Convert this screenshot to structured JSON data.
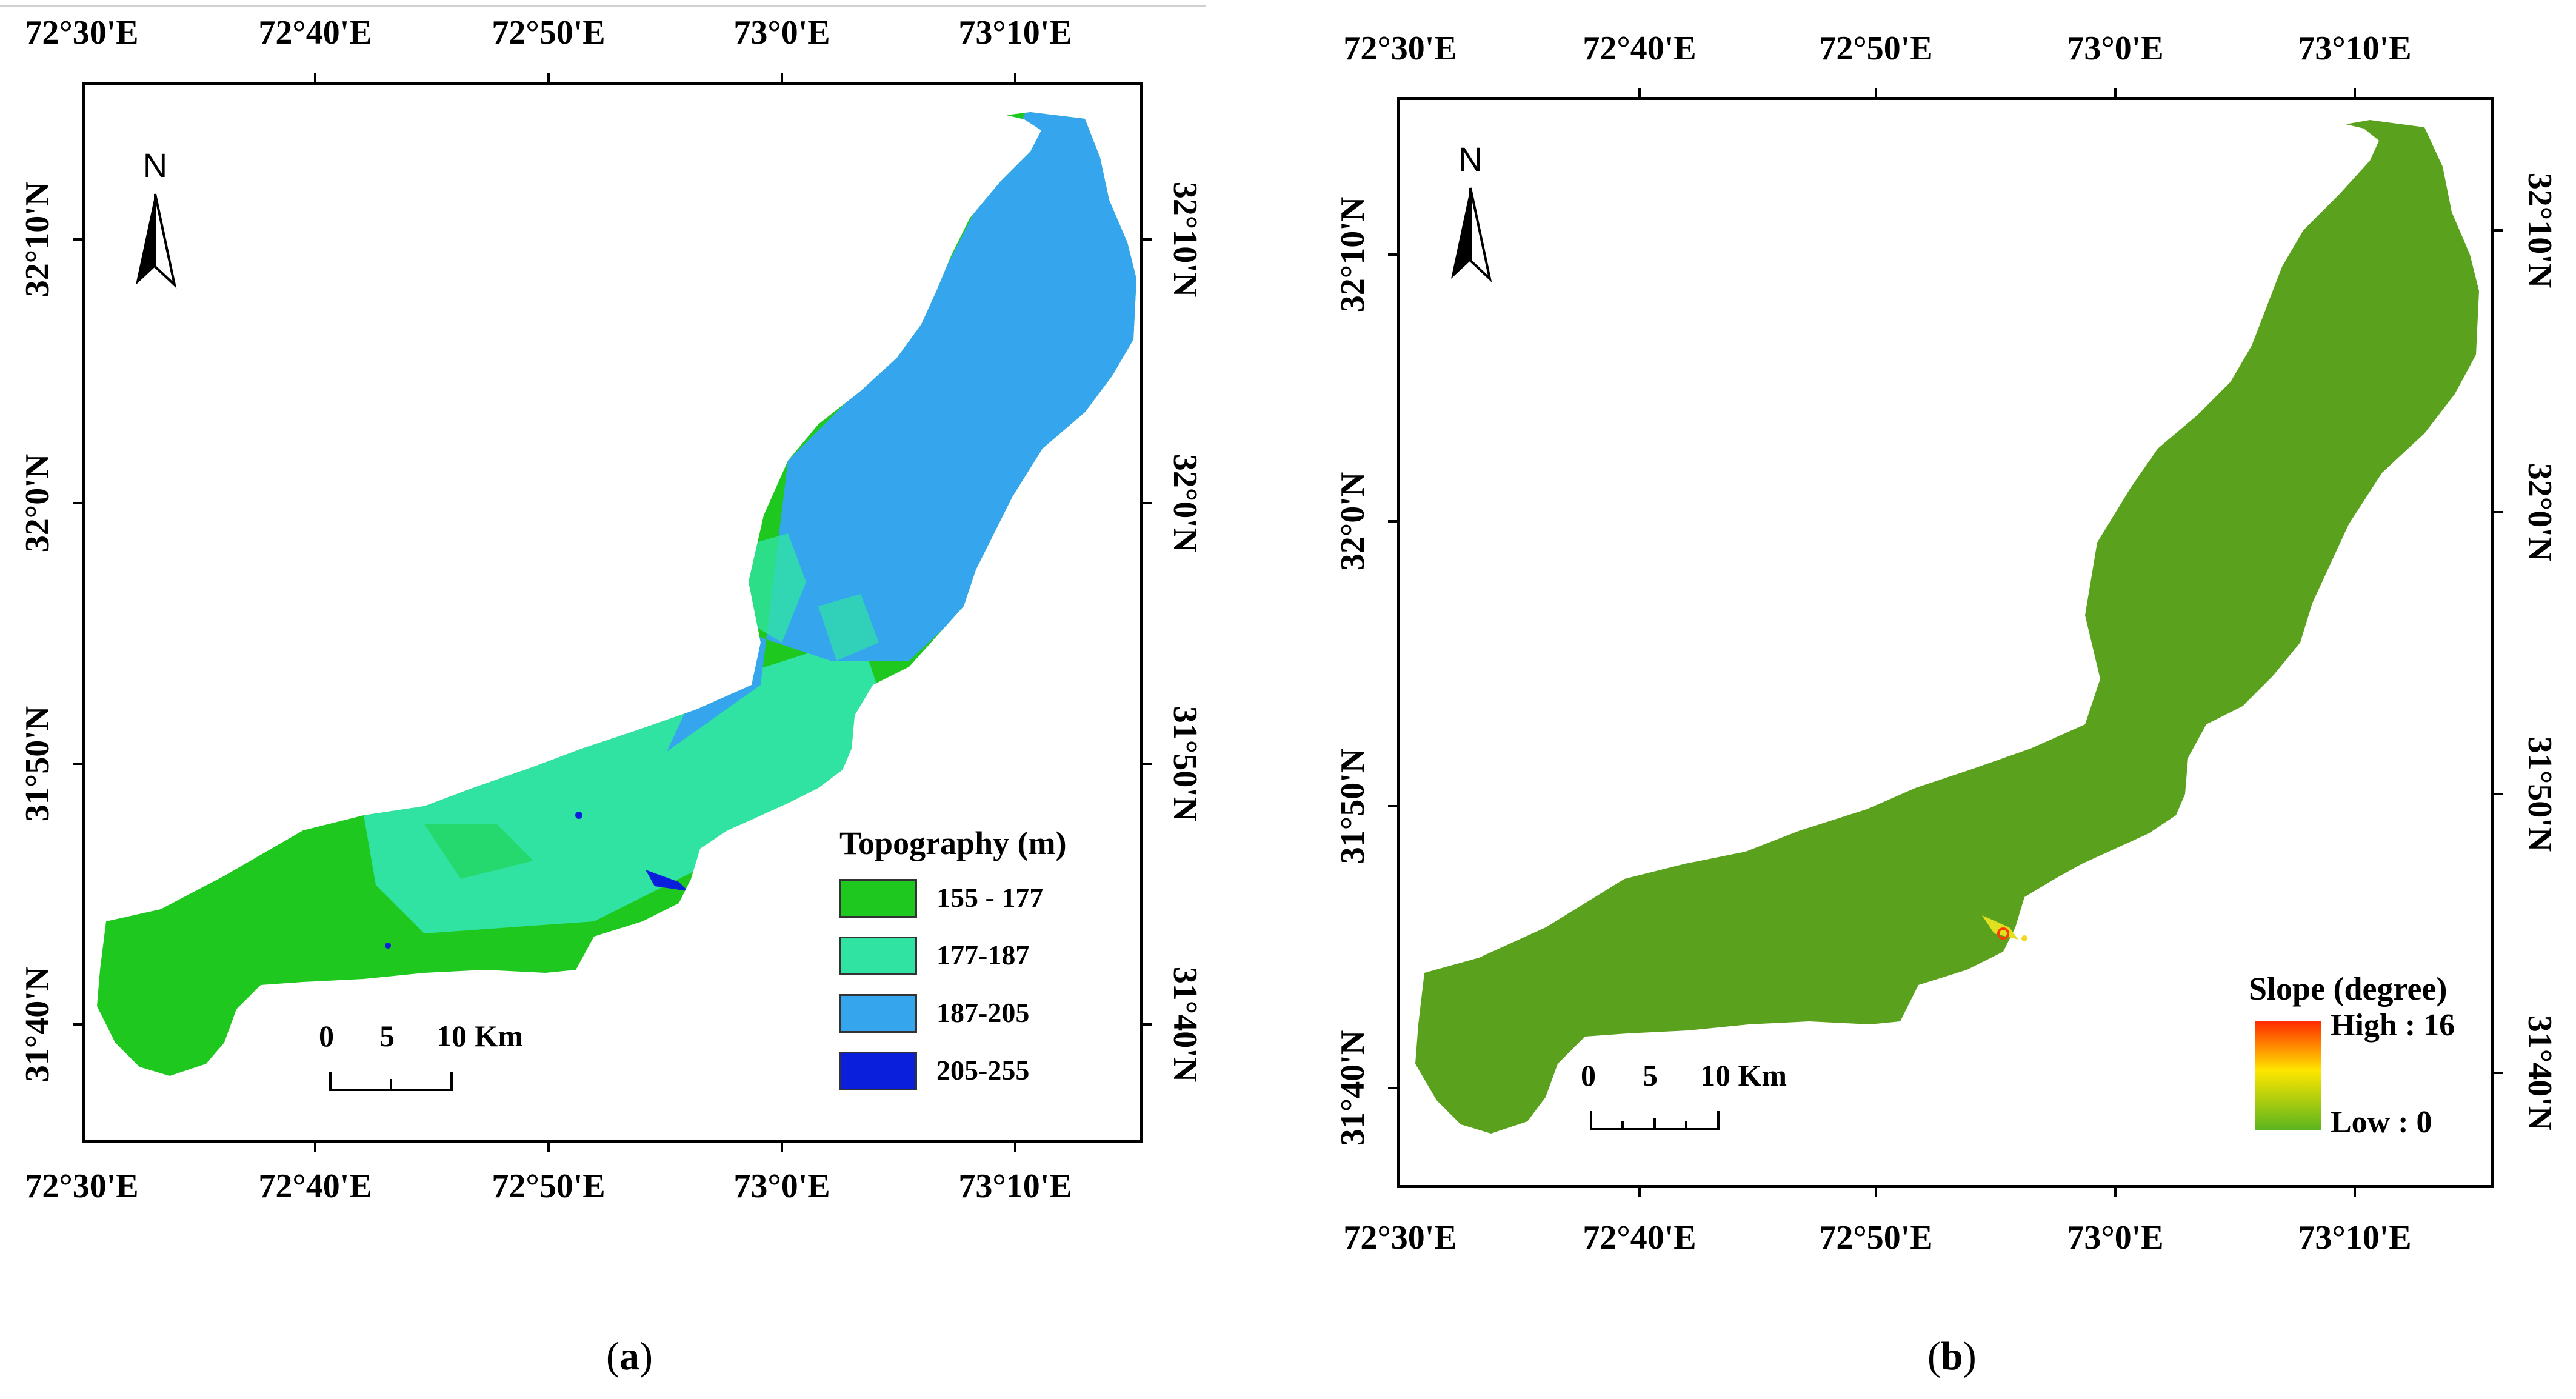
{
  "figure": {
    "panels": [
      {
        "id": "a",
        "caption_letter": "a",
        "top_lon_labels": [
          "72°30'E",
          "72°40'E",
          "72°50'E",
          "73°0'E",
          "73°10'E"
        ],
        "bottom_lon_labels": [
          "72°30'E",
          "72°40'E",
          "72°50'E",
          "73°0'E",
          "73°10'E"
        ],
        "left_lat_labels": [
          "32°10'N",
          "32°0'N",
          "31°50'N",
          "31°40'N"
        ],
        "right_lat_labels": [
          "32°10'N",
          "32°0'N",
          "31°50'N",
          "31°40'N"
        ],
        "north_label": "N",
        "scale": {
          "t0": "0",
          "t5": "5",
          "t10": "10 Km"
        },
        "legend": {
          "title": "Topography (m)",
          "classes": [
            {
              "label": "155 - 177",
              "color": "#1ec81e"
            },
            {
              "label": "177-187",
              "color": "#30e3a2"
            },
            {
              "label": "187-205",
              "color": "#35a6ee"
            },
            {
              "label": "205-255",
              "color": "#0a1fdc"
            }
          ]
        }
      },
      {
        "id": "b",
        "caption_letter": "b",
        "top_lon_labels": [
          "72°30'E",
          "72°40'E",
          "72°50'E",
          "73°0'E",
          "73°10'E"
        ],
        "bottom_lon_labels": [
          "72°30'E",
          "72°40'E",
          "72°50'E",
          "73°0'E",
          "73°10'E"
        ],
        "left_lat_labels": [
          "32°10'N",
          "32°0'N",
          "31°50'N",
          "31°40'N"
        ],
        "right_lat_labels": [
          "32°10'N",
          "32°0'N",
          "31°50'N",
          "31°40'N"
        ],
        "north_label": "N",
        "scale": {
          "t0": "0",
          "t5": "5",
          "t10": "10 Km"
        },
        "legend": {
          "title": "Slope (degree)",
          "high_label": "High : 16",
          "low_label": "Low : 0",
          "ramp_colors": [
            "#ff2a00",
            "#ffe600",
            "#5ab41e"
          ],
          "base_color": "#5aa21e"
        }
      }
    ]
  }
}
